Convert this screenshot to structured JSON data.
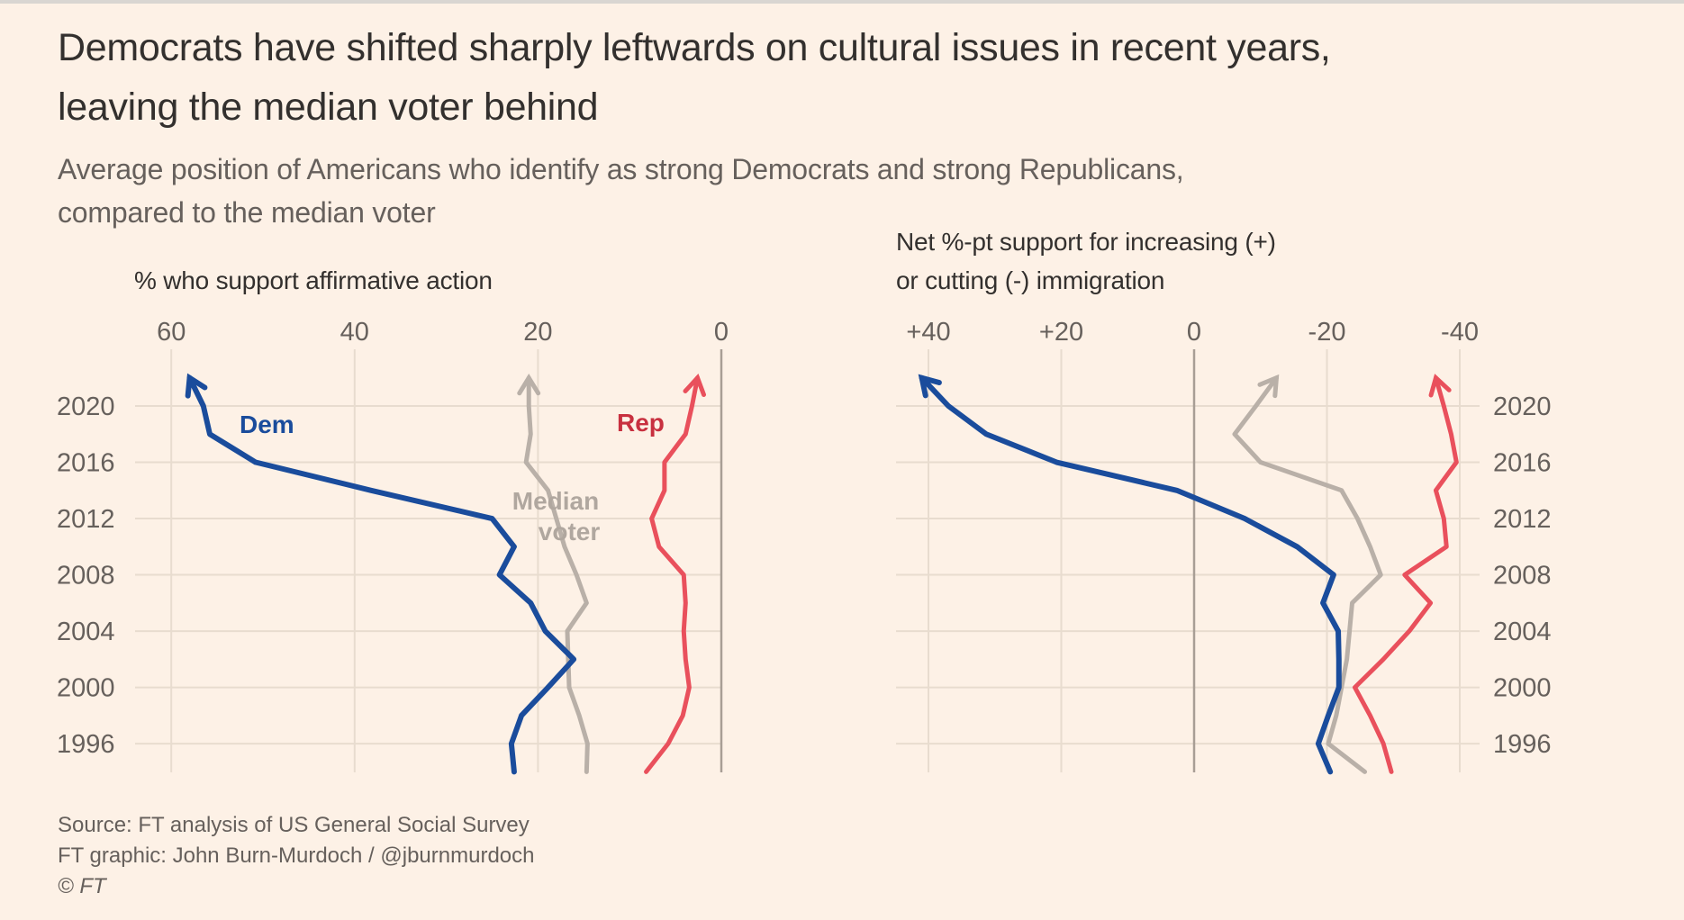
{
  "title_lines": [
    "Democrats have shifted sharply leftwards on cultural issues in recent years,",
    "leaving the median voter behind"
  ],
  "subtitle_lines": [
    "Average position of Americans who identify as strong Democrats and strong Republicans,",
    "compared to the median voter"
  ],
  "footer": {
    "source": "Source: FT analysis of US General Social Survey",
    "graphic": "FT graphic: John Burn-Murdoch / @jburnmurdoch",
    "copyright": "© FT"
  },
  "colors": {
    "background": "#fdf1e6",
    "dem": "#1a4c9c",
    "rep": "#e9505c",
    "median": "#b9b0a8",
    "grid": "#e8dccf",
    "zero": "#a89e95"
  },
  "chart_data": [
    {
      "type": "line",
      "title": "% who support affirmative action",
      "x_ticks": [
        60,
        40,
        20,
        0
      ],
      "x_tick_labels": [
        "60",
        "40",
        "20",
        "0"
      ],
      "xlim": [
        60,
        0
      ],
      "y_ticks": [
        2020,
        2016,
        2012,
        2008,
        2004,
        2000,
        1996
      ],
      "y_tick_labels": [
        "2020",
        "2016",
        "2012",
        "2008",
        "2004",
        "2000",
        "1996"
      ],
      "grid": true,
      "years": [
        1994,
        1996,
        1998,
        2000,
        2002,
        2004,
        2006,
        2008,
        2010,
        2012,
        2014,
        2016,
        2018,
        2020,
        2022
      ],
      "series": [
        {
          "name": "Dem",
          "key": "dem",
          "label": "Dem",
          "values": [
            22.6,
            22.9,
            21.8,
            18.9,
            16.1,
            19.2,
            20.8,
            24.2,
            22.6,
            25.0,
            38.2,
            50.8,
            55.8,
            56.5,
            58.0
          ]
        },
        {
          "name": "Median voter",
          "key": "median",
          "label": "Median voter",
          "values": [
            14.7,
            14.6,
            15.5,
            16.6,
            16.7,
            16.8,
            14.7,
            15.8,
            17.1,
            18.0,
            18.9,
            21.3,
            20.8,
            21.0,
            21.0
          ]
        },
        {
          "name": "Rep",
          "key": "rep",
          "label": "Rep",
          "values": [
            8.2,
            5.8,
            4.2,
            3.5,
            3.9,
            4.1,
            3.9,
            4.1,
            6.8,
            7.6,
            6.2,
            6.2,
            3.9,
            3.2,
            2.6
          ]
        }
      ],
      "labels": {
        "dem": "Dem",
        "rep": "Rep",
        "median_line1": "Median",
        "median_line2": "voter"
      }
    },
    {
      "type": "line",
      "title_lines": [
        "Net %-pt support for increasing (+)",
        "or cutting (-) immigration"
      ],
      "x_ticks": [
        40,
        20,
        0,
        -20,
        -40
      ],
      "x_tick_labels": [
        "+40",
        "+20",
        "0",
        "-20",
        "-40"
      ],
      "xlim": [
        40,
        -40
      ],
      "y_ticks": [
        2020,
        2016,
        2012,
        2008,
        2004,
        2000,
        1996
      ],
      "y_tick_labels": [
        "2020",
        "2016",
        "2012",
        "2008",
        "2004",
        "2000",
        "1996"
      ],
      "grid": true,
      "years": [
        1994,
        1996,
        1998,
        2000,
        2002,
        2004,
        2006,
        2008,
        2010,
        2012,
        2014,
        2016,
        2018,
        2020,
        2022
      ],
      "series": [
        {
          "name": "Dem",
          "key": "dem",
          "values": [
            -20.5,
            -18.7,
            -20.2,
            -21.8,
            -21.8,
            -21.7,
            -19.4,
            -21.0,
            -15.5,
            -7.6,
            2.6,
            20.7,
            31.3,
            37.0,
            41.0
          ]
        },
        {
          "name": "Median voter",
          "key": "median",
          "values": [
            -25.7,
            -20.2,
            -21.4,
            -22.2,
            -23.0,
            -23.4,
            -23.8,
            -28.1,
            -26.5,
            -24.6,
            -22.2,
            -10.0,
            -6.1,
            -9.3,
            -12.4
          ]
        },
        {
          "name": "Rep",
          "key": "rep",
          "values": [
            -29.7,
            -28.5,
            -26.5,
            -24.2,
            -28.5,
            -32.4,
            -35.6,
            -31.7,
            -38.0,
            -37.6,
            -36.4,
            -39.5,
            -38.7,
            -37.6,
            -36.4
          ]
        }
      ]
    }
  ]
}
